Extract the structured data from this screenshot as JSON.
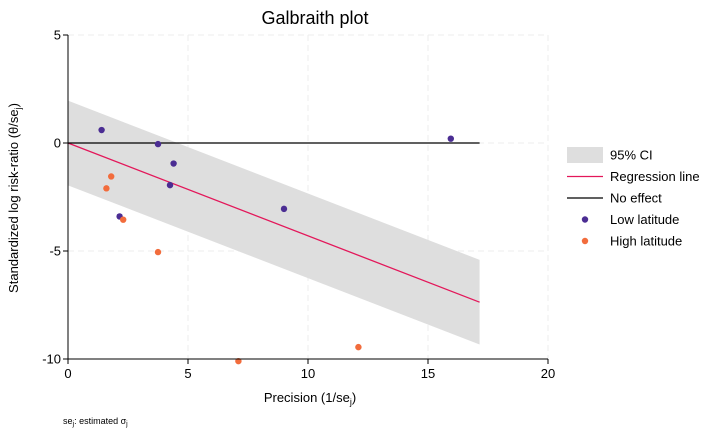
{
  "chart_data": {
    "type": "scatter",
    "title": "Galbraith plot",
    "xlabel": "Precision (1/se",
    "xlabel_sub": "j",
    "xlabel_end": ")",
    "ylabel": "Standardized log risk-ratio (θ/se",
    "ylabel_sub": "j",
    "ylabel_end": ")",
    "note": {
      "pre": "se",
      "sub1": "j",
      "mid": ": estimated σ",
      "sub2": "j"
    },
    "xlim": [
      0,
      20
    ],
    "ylim": [
      -10,
      5
    ],
    "xticks": [
      0,
      5,
      10,
      15,
      20
    ],
    "yticks": [
      -10,
      -5,
      0,
      5
    ],
    "grid": true,
    "legend_position": "right",
    "colors": {
      "ci_band": "#dedede",
      "regression": "#e3175a",
      "no_effect": "#000000",
      "low_latitude": "#4b2d93",
      "high_latitude": "#f26c3c"
    },
    "ci_band": {
      "x": [
        0,
        17.15
      ],
      "lower": [
        -1.96,
        -9.33
      ],
      "upper": [
        1.96,
        -5.41
      ]
    },
    "regression_line": {
      "x": [
        0,
        17.15
      ],
      "y": [
        0,
        -7.37
      ]
    },
    "no_effect_line": {
      "x": [
        0,
        17.15
      ],
      "y": [
        0,
        0
      ]
    },
    "series": [
      {
        "name": "Low latitude",
        "points": [
          [
            1.4,
            0.6
          ],
          [
            3.75,
            -0.05
          ],
          [
            4.4,
            -0.95
          ],
          [
            4.25,
            -1.95
          ],
          [
            2.15,
            -3.4
          ],
          [
            9.0,
            -3.05
          ],
          [
            15.95,
            0.2
          ]
        ]
      },
      {
        "name": "High latitude",
        "points": [
          [
            1.6,
            -2.1
          ],
          [
            1.8,
            -1.55
          ],
          [
            2.3,
            -3.55
          ],
          [
            3.75,
            -5.05
          ],
          [
            7.1,
            -10.1
          ],
          [
            12.1,
            -9.45
          ]
        ]
      }
    ],
    "legend": [
      {
        "label": "95% CI",
        "kind": "band"
      },
      {
        "label": "Regression line",
        "kind": "regression"
      },
      {
        "label": "No effect",
        "kind": "no_effect"
      },
      {
        "label": "Low latitude",
        "kind": "low"
      },
      {
        "label": "High latitude",
        "kind": "high"
      }
    ]
  }
}
